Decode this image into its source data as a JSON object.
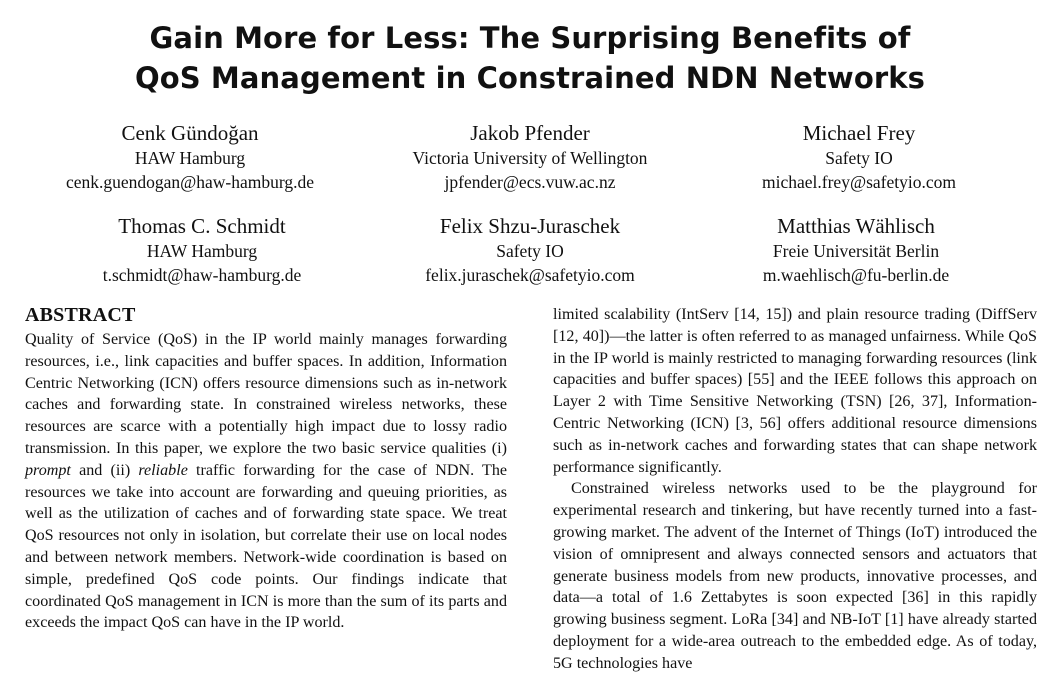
{
  "title": {
    "line1": "Gain More for Less: The Surprising Benefits of",
    "line2": "QoS Management in Constrained NDN Networks"
  },
  "authors": [
    {
      "name": "Cenk Gündoğan",
      "affiliation": "HAW Hamburg",
      "email": "cenk.guendogan@haw-hamburg.de"
    },
    {
      "name": "Jakob Pfender",
      "affiliation": "Victoria University of Wellington",
      "email": "jpfender@ecs.vuw.ac.nz"
    },
    {
      "name": "Michael Frey",
      "affiliation": "Safety IO",
      "email": "michael.frey@safetyio.com"
    },
    {
      "name": "Thomas C. Schmidt",
      "affiliation": "HAW Hamburg",
      "email": "t.schmidt@haw-hamburg.de"
    },
    {
      "name": "Felix Shzu-Juraschek",
      "affiliation": "Safety IO",
      "email": "felix.juraschek@safetyio.com"
    },
    {
      "name": "Matthias Wählisch",
      "affiliation": "Freie Universität Berlin",
      "email": "m.waehlisch@fu-berlin.de"
    }
  ],
  "abstract": {
    "heading": "ABSTRACT",
    "text_a": "Quality of Service (QoS) in the IP world mainly manages forwarding resources, i.e., link capacities and buffer spaces. In addition, Information Centric Networking (ICN) offers resource dimensions such as in-network caches and forwarding state. In constrained wireless networks, these resources are scarce with a potentially high impact due to lossy radio transmission. In this paper, we explore the two basic service qualities (i) ",
    "em_prompt": "prompt",
    "text_b": " and (ii) ",
    "em_reliable": "reliable",
    "text_c": " traffic forwarding for the case of NDN. The resources we take into account are forwarding and queuing priorities, as well as the utilization of caches and of forwarding state space. We treat QoS resources not only in isolation, but correlate their use on local nodes and between network members. Network-wide coordination is based on simple, predefined QoS code points. Our findings indicate that coordinated QoS management in ICN is more than the sum of its parts and exceeds the impact QoS can have in the IP world."
  },
  "right_column": {
    "para1": "limited scalability (IntServ [14, 15]) and plain resource trading (DiffServ [12, 40])—the latter is often referred to as managed unfairness. While QoS in the IP world is mainly restricted to managing forwarding resources (link capacities and buffer spaces) [55] and the IEEE follows this approach on Layer 2 with Time Sensitive Networking (TSN) [26, 37], Information-Centric Networking (ICN) [3, 56] offers additional resource dimensions such as in-network caches and forwarding states that can shape network performance significantly.",
    "para2": "Constrained wireless networks used to be the playground for experimental research and tinkering, but have recently turned into a fast-growing market. The advent of the Internet of Things (IoT) introduced the vision of omnipresent and always connected sensors and actuators that generate business models from new products, innovative processes, and data—a total of 1.6 Zettabytes is soon expected [36] in this rapidly growing business segment. LoRa [34] and NB-IoT [1] have already started deployment for a wide-area outreach to the embedded edge. As of today, 5G technologies have"
  }
}
